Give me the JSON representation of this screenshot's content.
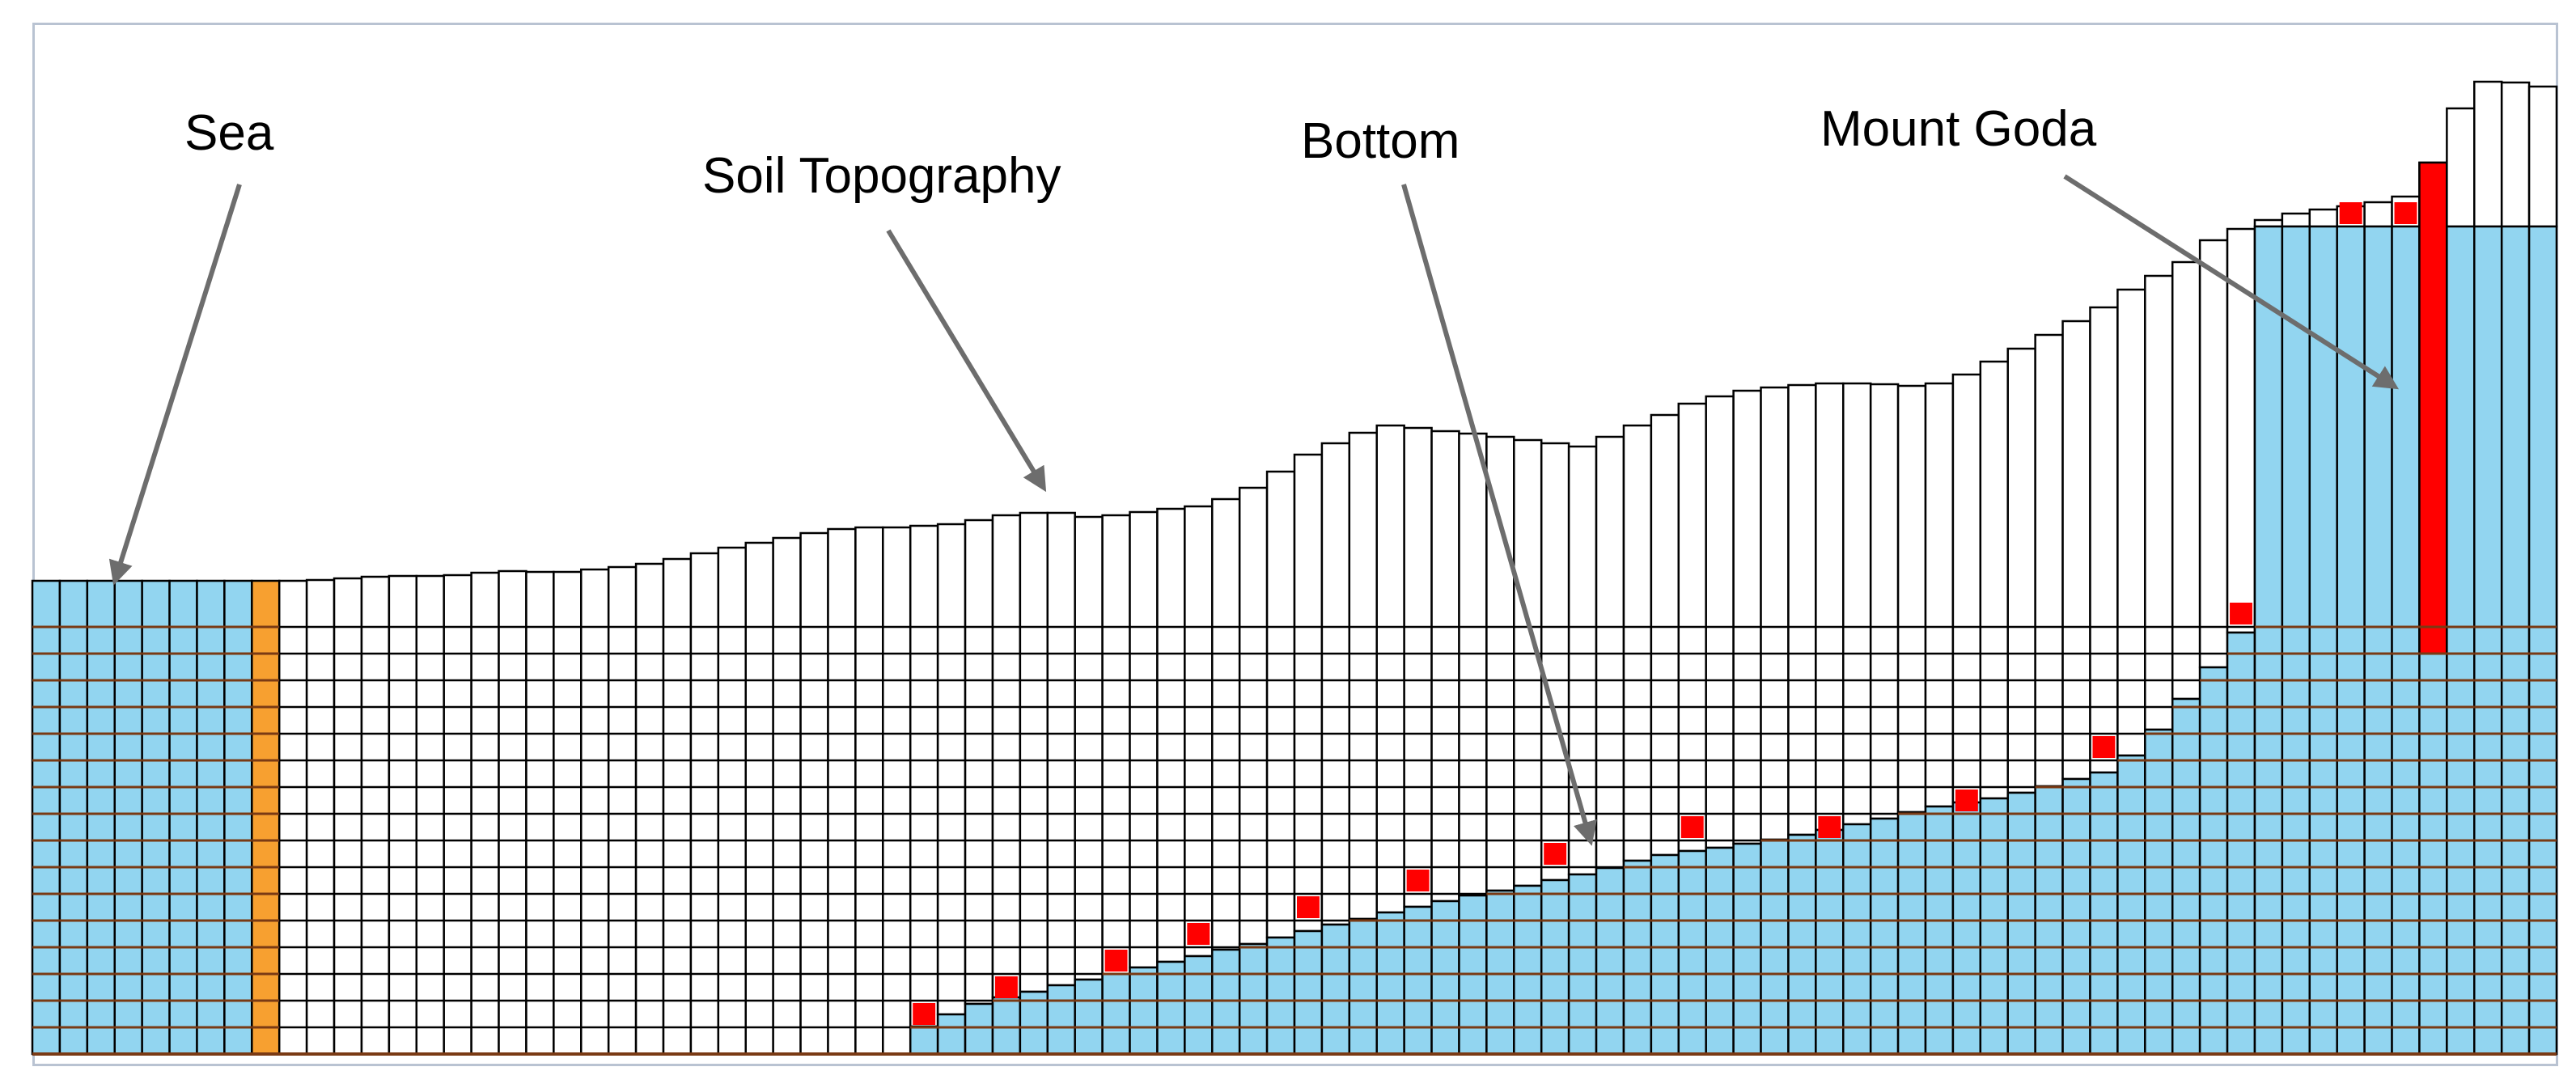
{
  "labels": {
    "sea": "Sea",
    "soil_topography": "Soil Topography",
    "bottom": "Bottom",
    "mount_goda": "Mount Goda"
  },
  "colors": {
    "water": "#92d5f0",
    "soil_line": "#7a3a14",
    "cell_outline": "#000000",
    "marker_red": "#ff0000",
    "marker_orange": "#f7a030",
    "arrow": "#6d6d6d",
    "background": "#ffffff",
    "frame": "#b9c3d2"
  }
}
